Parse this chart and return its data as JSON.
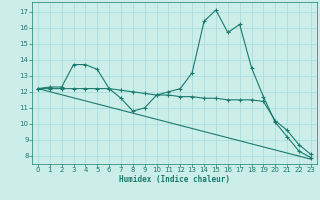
{
  "title": "",
  "xlabel": "Humidex (Indice chaleur)",
  "bg_color": "#cceee8",
  "line_color": "#1a7a6e",
  "grid_color": "#aadddd",
  "xlim": [
    -0.5,
    23.5
  ],
  "ylim": [
    7.5,
    17.6
  ],
  "yticks": [
    8,
    9,
    10,
    11,
    12,
    13,
    14,
    15,
    16,
    17
  ],
  "xticks": [
    0,
    1,
    2,
    3,
    4,
    5,
    6,
    7,
    8,
    9,
    10,
    11,
    12,
    13,
    14,
    15,
    16,
    17,
    18,
    19,
    20,
    21,
    22,
    23
  ],
  "line1": {
    "x": [
      0,
      1,
      2,
      3,
      4,
      5,
      6,
      7,
      8,
      9,
      10,
      11,
      12,
      13,
      14,
      15,
      16,
      17,
      18,
      19,
      20,
      21,
      22,
      23
    ],
    "y": [
      12.2,
      12.3,
      12.3,
      13.7,
      13.7,
      13.4,
      12.2,
      11.6,
      10.8,
      11.0,
      11.8,
      12.0,
      12.2,
      13.2,
      16.4,
      17.1,
      15.7,
      16.2,
      13.5,
      11.7,
      10.1,
      9.2,
      8.3,
      7.9
    ]
  },
  "line2": {
    "x": [
      0,
      1,
      2,
      3,
      4,
      5,
      6,
      7,
      8,
      9,
      10,
      11,
      12,
      13,
      14,
      15,
      16,
      17,
      18,
      19,
      20,
      21,
      22,
      23
    ],
    "y": [
      12.2,
      12.2,
      12.2,
      12.2,
      12.2,
      12.2,
      12.2,
      12.1,
      12.0,
      11.9,
      11.8,
      11.8,
      11.7,
      11.7,
      11.6,
      11.6,
      11.5,
      11.5,
      11.5,
      11.4,
      10.2,
      9.6,
      8.7,
      8.1
    ]
  },
  "line3": {
    "x": [
      0,
      23
    ],
    "y": [
      12.2,
      7.8
    ]
  }
}
